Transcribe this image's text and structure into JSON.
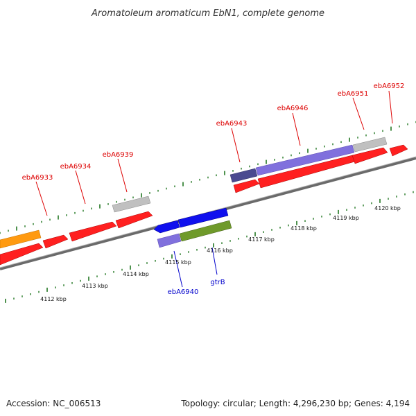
{
  "title": "Aromatoleum aromaticum EbN1, complete genome",
  "footer": {
    "accession": "Accession: NC_006513",
    "topology": "Topology: circular; Length: 4,296,230 bp; Genes: 4,194"
  },
  "colors": {
    "red": "#ff2020",
    "orange": "#ff9a10",
    "grey": "#b8b8b8",
    "blue": "#1010ee",
    "purple": "#8070dd",
    "darkPurple": "#44448a",
    "olive": "#6f9a2a",
    "labelRed": "#dd0000",
    "labelBlue": "#0000cc",
    "tick": "#227722",
    "backbone": "#888888"
  },
  "scale_labels": [
    "4112 kbp",
    "4113 kbp",
    "4114 kbp",
    "4115 kbp",
    "4116 kbp",
    "4117 kbp",
    "4118 kbp",
    "4119 kbp",
    "4120 kbp"
  ],
  "gene_labels": [
    {
      "text": "ebA6933",
      "color": "red"
    },
    {
      "text": "ebA6934",
      "color": "red"
    },
    {
      "text": "ebA6939",
      "color": "red"
    },
    {
      "text": "ebA6943",
      "color": "red"
    },
    {
      "text": "ebA6946",
      "color": "red"
    },
    {
      "text": "ebA6951",
      "color": "red"
    },
    {
      "text": "ebA6952",
      "color": "red"
    },
    {
      "text": "ebA6940",
      "color": "blue"
    },
    {
      "text": "gtrB",
      "color": "blue"
    }
  ]
}
